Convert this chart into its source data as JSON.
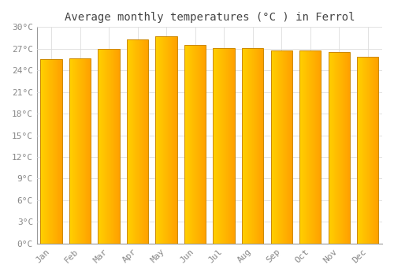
{
  "title": "Average monthly temperatures (°C ) in Ferrol",
  "months": [
    "Jan",
    "Feb",
    "Mar",
    "Apr",
    "May",
    "Jun",
    "Jul",
    "Aug",
    "Sep",
    "Oct",
    "Nov",
    "Dec"
  ],
  "values": [
    25.5,
    25.7,
    27.0,
    28.3,
    28.7,
    27.5,
    27.1,
    27.1,
    26.8,
    26.8,
    26.5,
    25.9
  ],
  "ylim": [
    0,
    30
  ],
  "yticks": [
    0,
    3,
    6,
    9,
    12,
    15,
    18,
    21,
    24,
    27,
    30
  ],
  "ytick_labels": [
    "0°C",
    "3°C",
    "6°C",
    "9°C",
    "12°C",
    "15°C",
    "18°C",
    "21°C",
    "24°C",
    "27°C",
    "30°C"
  ],
  "background_color": "#FFFFFF",
  "grid_color": "#DDDDDD",
  "title_fontsize": 10,
  "tick_fontsize": 8,
  "bar_color_left": "#FFD000",
  "bar_color_right": "#FFA000",
  "bar_edge_color": "#CC8800",
  "bar_width": 0.75,
  "bar_gap_color": "#FFFFFF"
}
